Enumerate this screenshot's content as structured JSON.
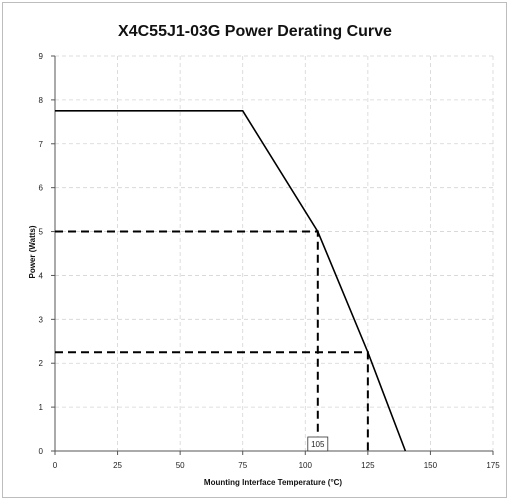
{
  "chart_data": {
    "type": "line",
    "title": "X4C55J1-03G Power Derating Curve",
    "xlabel": "Mounting Interface Temperature (°C)",
    "ylabel": "Power (Watts)",
    "xlim": [
      0,
      175
    ],
    "ylim": [
      0,
      9
    ],
    "xticks": [
      0,
      25,
      50,
      75,
      100,
      125,
      150,
      175
    ],
    "yticks": [
      0,
      1,
      2,
      3,
      4,
      5,
      6,
      7,
      8,
      9
    ],
    "grid": true,
    "series": [
      {
        "x": [
          0,
          75,
          105,
          125,
          140
        ],
        "y": [
          7.75,
          7.75,
          5.0,
          2.25,
          0
        ]
      }
    ],
    "guides": [
      {
        "x": 105,
        "y": 5.0
      },
      {
        "x": 125,
        "y": 2.25
      }
    ],
    "annotations": [
      {
        "text": "105",
        "x": 105
      }
    ],
    "colors": {
      "line": "#000000",
      "grid": "#d4d4d4"
    }
  }
}
